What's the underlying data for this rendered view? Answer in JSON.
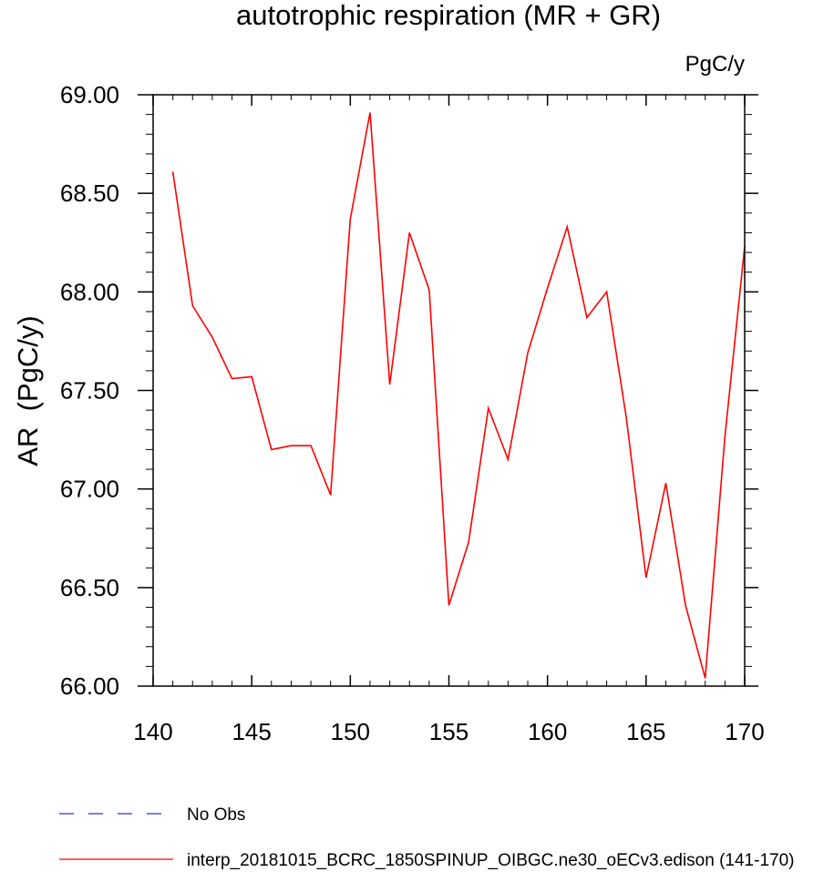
{
  "chart_data": {
    "type": "line",
    "title": "autotrophic respiration (MR + GR)",
    "units_label": "PgC/y",
    "ylabel": "AR  (PgC/y)",
    "xlabel": "",
    "xlim": [
      140,
      170
    ],
    "ylim": [
      66.0,
      69.0
    ],
    "x_ticks": [
      140,
      145,
      150,
      155,
      160,
      165,
      170
    ],
    "x_tick_labels": [
      "140",
      "145",
      "150",
      "155",
      "160",
      "165",
      "170"
    ],
    "y_ticks": [
      66.0,
      66.5,
      67.0,
      67.5,
      68.0,
      68.5,
      69.0
    ],
    "y_tick_labels": [
      "66.00",
      "66.50",
      "67.00",
      "67.50",
      "68.00",
      "68.50",
      "69.00"
    ],
    "grid": false,
    "legend_position": "bottom",
    "legend": [
      {
        "label": "No Obs",
        "color": "#3333cc",
        "style": "dashed"
      },
      {
        "label": "interp_20181015_BCRC_1850SPINUP_OIBGC.ne30_oECv3.edison (141-170)",
        "color": "#ff0000",
        "style": "solid"
      }
    ],
    "series": [
      {
        "color": "#ff0000",
        "x": [
          141,
          142,
          143,
          144,
          145,
          146,
          147,
          148,
          149,
          150,
          151,
          152,
          153,
          154,
          155,
          156,
          157,
          158,
          159,
          160,
          161,
          162,
          163,
          164,
          165,
          166,
          167,
          168,
          169,
          170
        ],
        "y": [
          68.61,
          67.93,
          67.77,
          67.56,
          67.57,
          67.2,
          67.22,
          67.22,
          66.97,
          68.37,
          68.91,
          67.53,
          68.3,
          68.01,
          66.41,
          66.73,
          67.41,
          67.15,
          67.69,
          68.02,
          68.33,
          67.87,
          68.0,
          67.36,
          66.55,
          67.03,
          66.41,
          66.04,
          67.27,
          68.23
        ]
      }
    ]
  }
}
